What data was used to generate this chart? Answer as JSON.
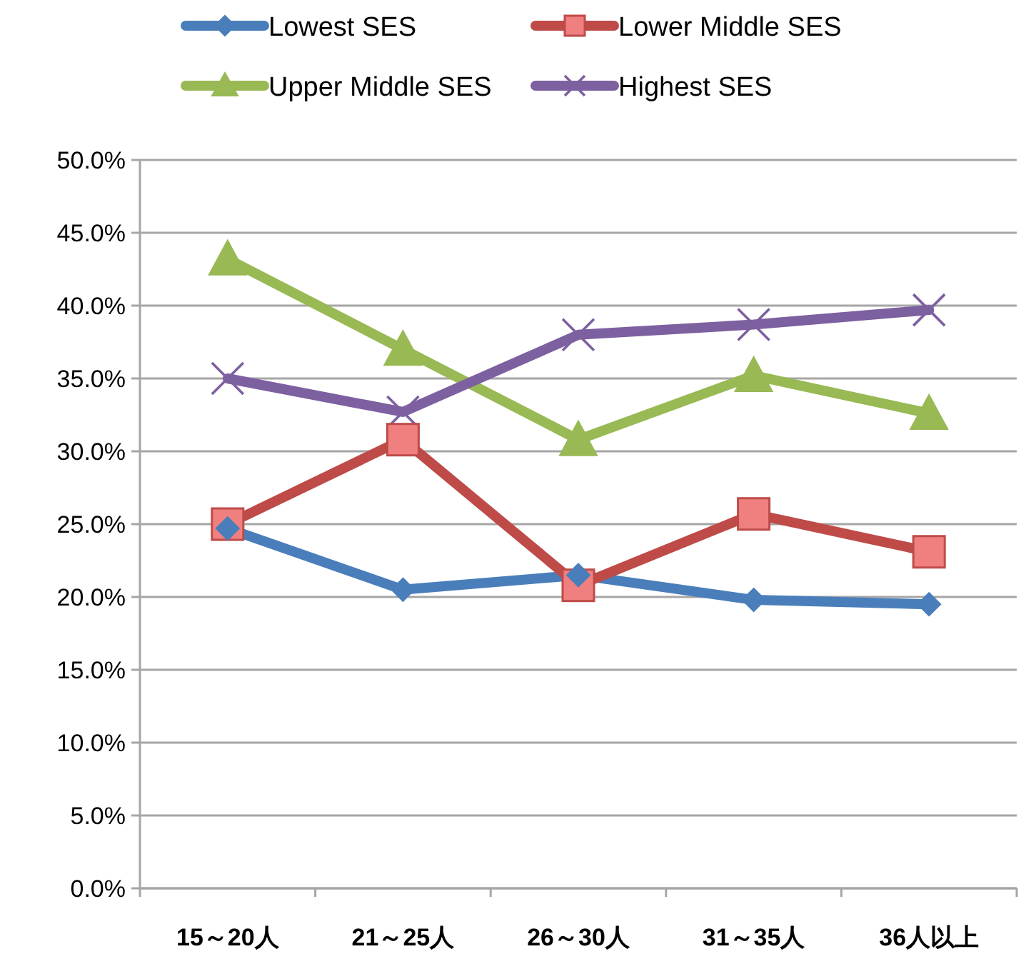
{
  "chart_data": {
    "type": "line",
    "categories": [
      "15～20人",
      "21～25人",
      "26～30人",
      "31～35人",
      "36人以上"
    ],
    "series": [
      {
        "name": "Lowest SES",
        "color": "#4a7ebb",
        "marker": "diamond",
        "values": [
          24.7,
          20.5,
          21.5,
          19.8,
          19.5
        ]
      },
      {
        "name": "Lower Middle SES",
        "color": "#be4b48",
        "marker": "square",
        "values": [
          25.0,
          30.8,
          20.8,
          25.7,
          23.1
        ]
      },
      {
        "name": "Upper Middle SES",
        "color": "#98b954",
        "marker": "triangle",
        "values": [
          43.2,
          37.0,
          30.8,
          35.2,
          32.6
        ]
      },
      {
        "name": "Highest SES",
        "color": "#7d60a0",
        "marker": "cross",
        "values": [
          35.0,
          32.7,
          38.0,
          38.7,
          39.7
        ]
      }
    ],
    "ylim": [
      0,
      50
    ],
    "yticks": [
      {
        "value": 0,
        "label": "0.0%"
      },
      {
        "value": 5,
        "label": "5.0%"
      },
      {
        "value": 10,
        "label": "10.0%"
      },
      {
        "value": 15,
        "label": "15.0%"
      },
      {
        "value": 20,
        "label": "20.0%"
      },
      {
        "value": 25,
        "label": "25.0%"
      },
      {
        "value": 30,
        "label": "30.0%"
      },
      {
        "value": 35,
        "label": "35.0%"
      },
      {
        "value": 40,
        "label": "40.0%"
      },
      {
        "value": 45,
        "label": "45.0%"
      },
      {
        "value": 50,
        "label": "50.0%"
      }
    ],
    "grid": "y",
    "legend": "top",
    "line_style": "solid"
  }
}
